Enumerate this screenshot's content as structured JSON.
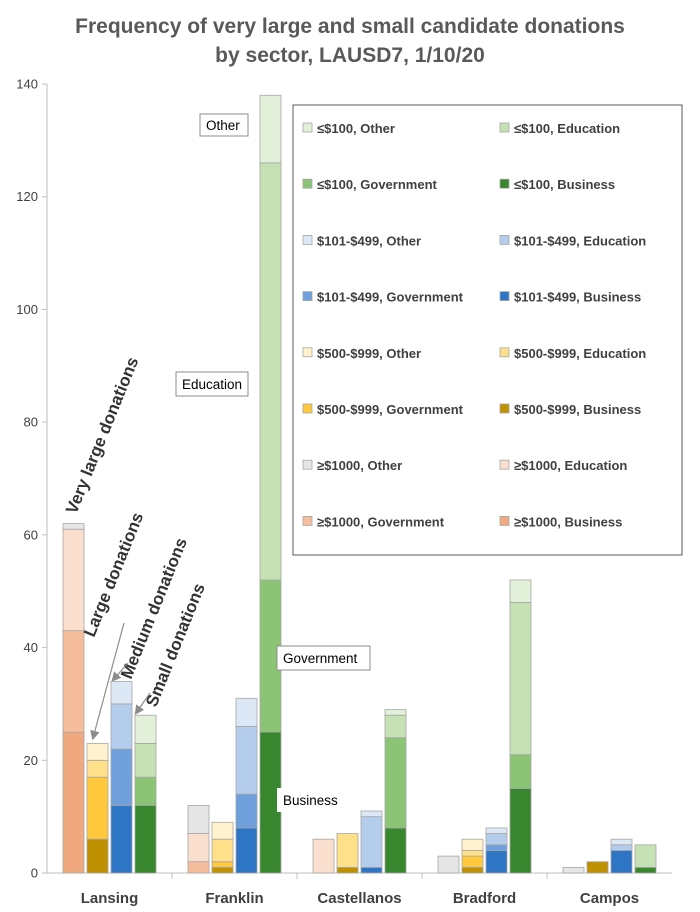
{
  "chart_data": {
    "type": "bar",
    "stacked": true,
    "title_line1": "Frequency of very large and small candidate donations",
    "title_line2": "by sector, LAUSD7, 1/10/20",
    "xlabel": "",
    "ylabel": "",
    "ylim": [
      0,
      140
    ],
    "yticks": [
      "0",
      "20",
      "40",
      "60",
      "80",
      "100",
      "120",
      "140"
    ],
    "grid": false,
    "legend_position": "top-right",
    "categories": [
      "Lansing",
      "Franklin",
      "Castellanos",
      "Bradford",
      "Campos"
    ],
    "size_groups": [
      "≥$1000",
      "$500-$999",
      "$101-$499",
      "≤$100"
    ],
    "sectors": [
      "Business",
      "Government",
      "Education",
      "Other"
    ],
    "series": [
      {
        "name": "≥$1000, Business",
        "group": "≥$1000",
        "sector": "Business",
        "values": [
          25,
          0,
          0,
          0,
          0
        ]
      },
      {
        "name": "≥$1000, Government",
        "group": "≥$1000",
        "sector": "Government",
        "values": [
          18,
          2,
          0,
          0,
          0
        ]
      },
      {
        "name": "≥$1000, Education",
        "group": "≥$1000",
        "sector": "Education",
        "values": [
          18,
          5,
          6,
          0,
          0
        ]
      },
      {
        "name": "≥$1000, Other",
        "group": "≥$1000",
        "sector": "Other",
        "values": [
          1,
          5,
          0,
          3,
          1
        ]
      },
      {
        "name": "$500-$999, Business",
        "group": "$500-$999",
        "sector": "Business",
        "values": [
          6,
          1,
          1,
          1,
          2
        ]
      },
      {
        "name": "$500-$999, Government",
        "group": "$500-$999",
        "sector": "Government",
        "values": [
          11,
          1,
          0,
          2,
          0
        ]
      },
      {
        "name": "$500-$999, Education",
        "group": "$500-$999",
        "sector": "Education",
        "values": [
          3,
          4,
          6,
          1,
          0
        ]
      },
      {
        "name": "$500-$999, Other",
        "group": "$500-$999",
        "sector": "Other",
        "values": [
          3,
          3,
          0,
          2,
          0
        ]
      },
      {
        "name": "$101-$499, Business",
        "group": "$101-$499",
        "sector": "Business",
        "values": [
          12,
          8,
          1,
          4,
          4
        ]
      },
      {
        "name": "$101-$499, Government",
        "group": "$101-$499",
        "sector": "Government",
        "values": [
          10,
          6,
          0,
          1,
          0
        ]
      },
      {
        "name": "$101-$499, Education",
        "group": "$101-$499",
        "sector": "Education",
        "values": [
          8,
          12,
          9,
          2,
          1
        ]
      },
      {
        "name": "$101-$499, Other",
        "group": "$101-$499",
        "sector": "Other",
        "values": [
          4,
          5,
          1,
          1,
          1
        ]
      },
      {
        "name": "≤$100, Business",
        "group": "≤$100",
        "sector": "Business",
        "values": [
          12,
          25,
          8,
          15,
          1
        ]
      },
      {
        "name": "≤$100, Government",
        "group": "≤$100",
        "sector": "Government",
        "values": [
          5,
          27,
          16,
          6,
          0
        ]
      },
      {
        "name": "≤$100, Education",
        "group": "≤$100",
        "sector": "Education",
        "values": [
          6,
          74,
          4,
          27,
          4
        ]
      },
      {
        "name": "≤$100, Other",
        "group": "≤$100",
        "sector": "Other",
        "values": [
          5,
          12,
          1,
          4,
          0
        ]
      }
    ],
    "colors": {
      "≥$1000, Business": "#f0a97f",
      "≥$1000, Government": "#f5bd9c",
      "≥$1000, Education": "#fadfce",
      "≥$1000, Other": "#e6e6e6",
      "$500-$999, Business": "#bf9000",
      "$500-$999, Government": "#ffc83d",
      "$500-$999, Education": "#ffe08a",
      "$500-$999, Other": "#fff2cc",
      "$101-$499, Business": "#2e75c6",
      "$101-$499, Government": "#6fa0dc",
      "$101-$499, Education": "#b4cdec",
      "$101-$499, Other": "#dde8f6",
      "≤$100, Business": "#38862d",
      "≤$100, Government": "#8bc474",
      "≤$100, Education": "#c6e2b5",
      "≤$100, Other": "#e3f0d9"
    },
    "legend_order": [
      "≤$100, Other",
      "≤$100, Education",
      "≤$100, Government",
      "≤$100, Business",
      "$101-$499, Other",
      "$101-$499, Education",
      "$101-$499, Government",
      "$101-$499, Business",
      "$500-$999, Other",
      "$500-$999, Education",
      "$500-$999, Government",
      "$500-$999, Business",
      "≥$1000, Other",
      "≥$1000, Education",
      "≥$1000, Government",
      "≥$1000, Business"
    ],
    "annotations": {
      "sector_labels": [
        "Other",
        "Education",
        "Government",
        "Business"
      ],
      "group_labels": [
        "Very large donations",
        "Large donations",
        "Medium donations",
        "Small donations"
      ]
    }
  }
}
